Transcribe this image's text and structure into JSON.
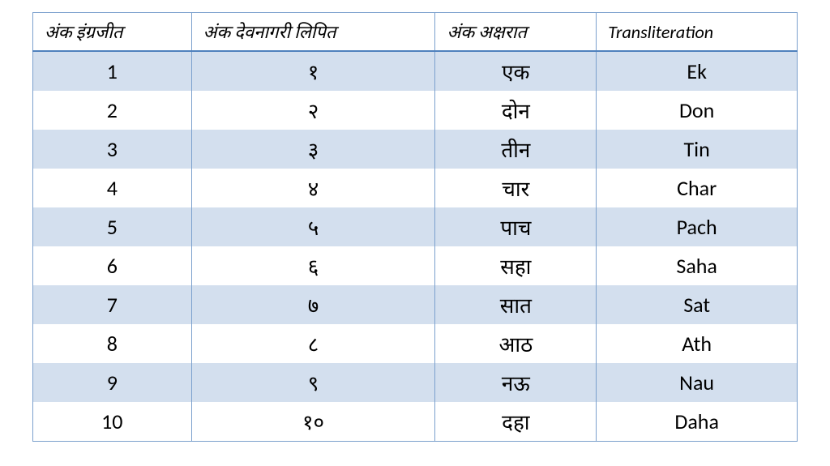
{
  "table": {
    "columns": [
      "अंक इंग्रजीत",
      "अंक देवनागरी लिपित",
      "अंक अक्षरात",
      "Transliteration"
    ],
    "rows": [
      {
        "english": "1",
        "devanagari": "१",
        "words": "एक",
        "translit": "Ek"
      },
      {
        "english": "2",
        "devanagari": "२",
        "words": "दोन",
        "translit": "Don"
      },
      {
        "english": "3",
        "devanagari": "३",
        "words": "तीन",
        "translit": "Tin"
      },
      {
        "english": "4",
        "devanagari": "४",
        "words": "चार",
        "translit": "Char"
      },
      {
        "english": "5",
        "devanagari": "५",
        "words": "पाच",
        "translit": "Pach"
      },
      {
        "english": "6",
        "devanagari": "६",
        "words": "सहा",
        "translit": "Saha"
      },
      {
        "english": "7",
        "devanagari": "७",
        "words": "सात",
        "translit": "Sat"
      },
      {
        "english": "8",
        "devanagari": "८",
        "words": "आठ",
        "translit": "Ath"
      },
      {
        "english": "9",
        "devanagari": "९",
        "words": "नऊ",
        "translit": "Nau"
      },
      {
        "english": "10",
        "devanagari": "१०",
        "words": "दहा",
        "translit": "Daha"
      }
    ],
    "styling": {
      "header_bg": "#ffffff",
      "row_odd_bg": "#d3dfee",
      "row_even_bg": "#ffffff",
      "border_color": "#7ba0cd",
      "header_border_bottom": "#4f81bd",
      "text_color": "#000000",
      "header_fontsize": 22,
      "cell_fontsize": 26,
      "header_italic": true
    }
  }
}
